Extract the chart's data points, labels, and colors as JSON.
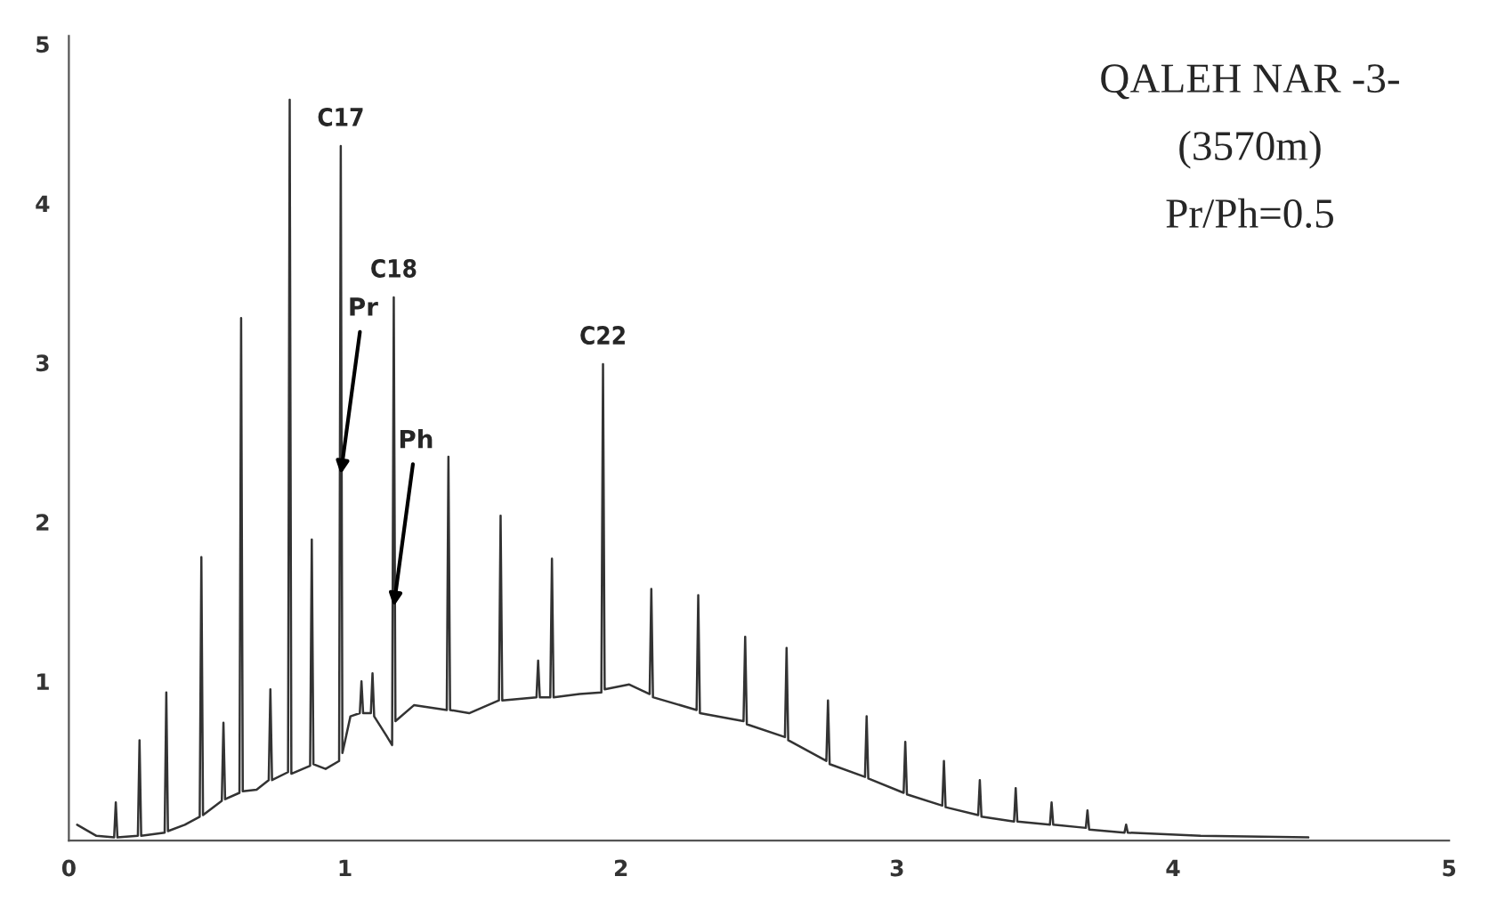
{
  "chart_data": {
    "type": "line",
    "x": [
      0.03,
      0.1,
      0.164,
      0.17,
      0.176,
      0.25,
      0.256,
      0.262,
      0.347,
      0.353,
      0.359,
      0.42,
      0.474,
      0.48,
      0.486,
      0.554,
      0.56,
      0.566,
      0.618,
      0.624,
      0.63,
      0.68,
      0.724,
      0.73,
      0.736,
      0.794,
      0.8,
      0.806,
      0.874,
      0.88,
      0.886,
      0.93,
      0.979,
      0.985,
      0.991,
      1.02,
      1.054,
      1.06,
      1.066,
      1.094,
      1.1,
      1.106,
      1.15,
      1.171,
      1.177,
      1.183,
      1.25,
      1.369,
      1.375,
      1.381,
      1.45,
      1.558,
      1.564,
      1.57,
      1.694,
      1.7,
      1.706,
      1.744,
      1.75,
      1.756,
      1.85,
      1.929,
      1.935,
      1.941,
      2.03,
      2.104,
      2.11,
      2.116,
      2.274,
      2.28,
      2.286,
      2.444,
      2.45,
      2.456,
      2.594,
      2.6,
      2.606,
      2.744,
      2.75,
      2.756,
      2.884,
      2.89,
      2.896,
      3.024,
      3.03,
      3.036,
      3.164,
      3.17,
      3.176,
      3.294,
      3.3,
      3.306,
      3.424,
      3.43,
      3.436,
      3.554,
      3.56,
      3.566,
      3.684,
      3.69,
      3.696,
      3.824,
      3.83,
      3.836,
      4.1,
      4.49
    ],
    "series": [
      {
        "color": "#333333",
        "values": [
          0.1,
          0.03,
          0.02,
          0.24,
          0.02,
          0.03,
          0.63,
          0.03,
          0.05,
          0.93,
          0.06,
          0.1,
          0.15,
          1.78,
          0.16,
          0.25,
          0.74,
          0.26,
          0.3,
          3.28,
          0.31,
          0.32,
          0.38,
          0.95,
          0.38,
          0.43,
          4.65,
          0.42,
          0.47,
          1.89,
          0.48,
          0.45,
          0.5,
          4.36,
          0.55,
          0.78,
          0.8,
          1.0,
          0.8,
          0.8,
          1.05,
          0.78,
          0.66,
          0.6,
          3.41,
          0.75,
          0.85,
          0.82,
          2.41,
          0.82,
          0.8,
          0.88,
          2.04,
          0.88,
          0.9,
          1.13,
          0.9,
          0.9,
          1.77,
          0.9,
          0.92,
          0.93,
          2.99,
          0.95,
          0.98,
          0.92,
          1.58,
          0.9,
          0.82,
          1.54,
          0.8,
          0.75,
          1.28,
          0.73,
          0.65,
          1.21,
          0.63,
          0.5,
          0.88,
          0.48,
          0.4,
          0.78,
          0.39,
          0.3,
          0.62,
          0.29,
          0.22,
          0.5,
          0.21,
          0.16,
          0.38,
          0.15,
          0.12,
          0.33,
          0.12,
          0.1,
          0.24,
          0.1,
          0.08,
          0.19,
          0.07,
          0.05,
          0.1,
          0.05,
          0.03,
          0.02
        ]
      }
    ],
    "xlim": [
      0,
      5.0
    ],
    "xticks": [
      0,
      1,
      2,
      3,
      4,
      5
    ],
    "ylim": [
      0,
      5.05
    ],
    "yticks": [
      1,
      2,
      3,
      4,
      5
    ],
    "grid": false,
    "legend": false,
    "annotations": [
      {
        "text": "C17",
        "x": 0.985,
        "y": 4.36
      },
      {
        "text": "C18",
        "x": 1.177,
        "y": 3.41
      },
      {
        "text": "Pr",
        "x": 0.985,
        "y": 2.3
      },
      {
        "text": "Ph",
        "x": 1.177,
        "y": 1.47
      },
      {
        "text": "C22",
        "x": 1.935,
        "y": 2.99
      },
      "QALEH NAR -3-",
      "(3570m)",
      "Pr/Ph=0.5"
    ]
  }
}
